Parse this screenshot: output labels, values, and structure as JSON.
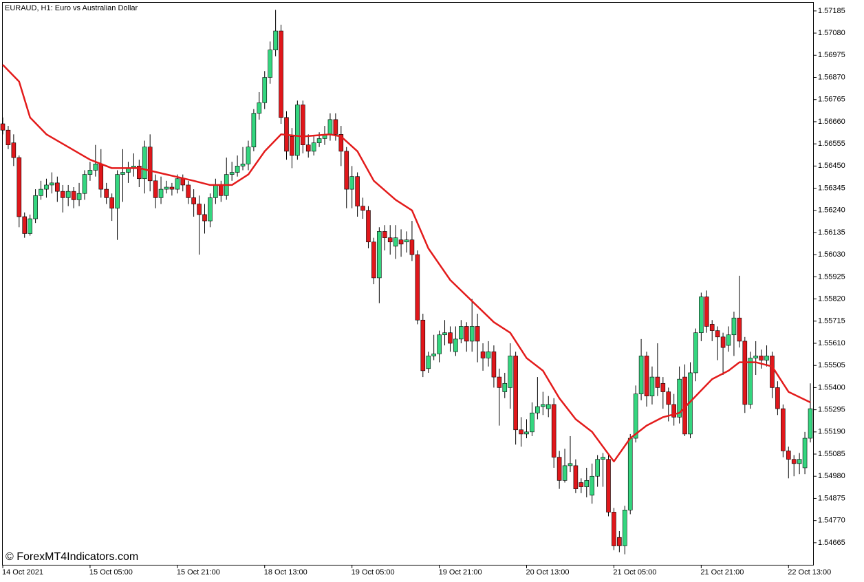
{
  "chart_data": {
    "type": "candlestick",
    "title": "EURAUD, H1:  Euro vs Australian Dollar",
    "watermark": "© ForexMT4Indicators.com",
    "up_color": "#34d67f",
    "down_color": "#e0171b",
    "categories": [
      "14 Oct 2021",
      null,
      null,
      null,
      null,
      null,
      null,
      null,
      null,
      null,
      null,
      null,
      null,
      null,
      null,
      null,
      "15 Oct 05:00",
      null,
      null,
      null,
      null,
      null,
      null,
      null,
      null,
      null,
      null,
      null,
      null,
      null,
      null,
      null,
      "15 Oct 21:00",
      null,
      null,
      null,
      null,
      null,
      null,
      null,
      null,
      null,
      null,
      null,
      null,
      null,
      null,
      null,
      "18 Oct 13:00",
      null,
      null,
      null,
      null,
      null,
      null,
      null,
      null,
      null,
      null,
      null,
      null,
      null,
      null,
      null,
      "19 Oct 05:00",
      null,
      null,
      null,
      null,
      null,
      null,
      null,
      null,
      null,
      null,
      null,
      null,
      null,
      null,
      null,
      "19 Oct 21:00",
      null,
      null,
      null,
      null,
      null,
      null,
      null,
      null,
      null,
      null,
      null,
      null,
      null,
      null,
      null,
      "20 Oct 13:00",
      null,
      null,
      null,
      null,
      null,
      null,
      null,
      null,
      null,
      null,
      null,
      null,
      null,
      null,
      null,
      "21 Oct 05:00",
      null,
      null,
      null,
      null,
      null,
      null,
      null,
      null,
      null,
      null,
      null,
      null,
      null,
      null,
      null,
      "21 Oct 21:00",
      null,
      null,
      null,
      null,
      null,
      null,
      null,
      null,
      null,
      null,
      null,
      null,
      null,
      null,
      null,
      "22 Oct 13:00",
      null,
      null,
      null,
      null
    ],
    "open": [
      1.5665,
      1.5662,
      1.5656,
      1.5649,
      1.5621,
      1.5613,
      1.562,
      1.5631,
      1.5634,
      1.5636,
      1.5637,
      1.5633,
      1.563,
      1.5633,
      1.5629,
      1.5632,
      1.5641,
      1.5643,
      1.5646,
      1.5634,
      1.563,
      1.5625,
      1.5641,
      1.5642,
      1.5644,
      1.5645,
      1.5639,
      1.5654,
      1.5638,
      1.563,
      1.5634,
      1.5635,
      1.5634,
      1.5639,
      1.5636,
      1.563,
      1.5627,
      1.5622,
      1.5619,
      1.563,
      1.5636,
      1.5631,
      1.5641,
      1.5642,
      1.5645,
      1.5646,
      1.5654,
      1.567,
      1.5675,
      1.5687,
      1.57,
      1.5709,
      1.5668,
      1.5659,
      1.565,
      1.5674,
      1.5655,
      1.5652,
      1.5656,
      1.5658,
      1.566,
      1.5667,
      1.566,
      1.5652,
      1.5634,
      1.564,
      1.5626,
      1.5624,
      1.5609,
      1.5592,
      1.5614,
      1.5611,
      1.5607,
      1.561,
      1.5609,
      1.561,
      1.5603,
      1.5572,
      1.5549,
      1.5555,
      1.5556,
      1.5565,
      1.5566,
      1.5557,
      1.5563,
      1.5569,
      1.5562,
      1.5569,
      1.5557,
      1.5554,
      1.5557,
      1.5545,
      1.5538,
      1.554,
      1.5555,
      1.552,
      1.5518,
      1.5519,
      1.5528,
      1.5531,
      1.553,
      1.5532,
      1.5507,
      1.5496,
      1.5503,
      1.5503,
      1.5495,
      1.5493,
      1.5489,
      1.5498,
      1.5506,
      1.5506,
      1.5481,
      1.5469,
      1.5465,
      1.5482,
      1.5516,
      1.5537,
      1.5555,
      1.5536,
      1.5545,
      1.5542,
      1.5538,
      1.5532,
      1.5526,
      1.5545,
      1.5518,
      1.5547,
      1.5566,
      1.5583,
      1.557,
      1.5567,
      1.5564,
      1.556,
      1.5565,
      1.5573,
      1.5562,
      1.5532,
      1.5554,
      1.5555,
      1.5553,
      1.5555,
      1.554,
      1.553,
      1.551,
      1.5506,
      1.5504,
      1.5502,
      1.5516
    ],
    "high": [
      1.5668,
      1.5664,
      1.566,
      1.565,
      1.5623,
      1.5622,
      1.5634,
      1.5638,
      1.5639,
      1.5642,
      1.564,
      1.5636,
      1.5636,
      1.5635,
      1.5637,
      1.5643,
      1.5647,
      1.5655,
      1.5653,
      1.5637,
      1.5632,
      1.5643,
      1.5653,
      1.5647,
      1.5651,
      1.5648,
      1.5657,
      1.566,
      1.5641,
      1.564,
      1.5638,
      1.5637,
      1.5641,
      1.5641,
      1.5638,
      1.5634,
      1.5631,
      1.5627,
      1.5632,
      1.5639,
      1.5638,
      1.5649,
      1.5647,
      1.565,
      1.5654,
      1.5657,
      1.5672,
      1.568,
      1.569,
      1.5704,
      1.5719,
      1.5712,
      1.5671,
      1.5663,
      1.5676,
      1.5676,
      1.566,
      1.5659,
      1.5661,
      1.5664,
      1.567,
      1.567,
      1.5664,
      1.5654,
      1.5645,
      1.5642,
      1.563,
      1.5626,
      1.5611,
      1.5616,
      1.5617,
      1.5617,
      1.5617,
      1.5615,
      1.5614,
      1.5619,
      1.5605,
      1.5575,
      1.5557,
      1.5565,
      1.5567,
      1.5572,
      1.5569,
      1.5569,
      1.5572,
      1.5571,
      1.5582,
      1.5575,
      1.5561,
      1.5562,
      1.556,
      1.5549,
      1.5547,
      1.5561,
      1.5557,
      1.5526,
      1.5525,
      1.5533,
      1.5545,
      1.5538,
      1.5536,
      1.5535,
      1.551,
      1.5511,
      1.5517,
      1.5506,
      1.5497,
      1.5502,
      1.5504,
      1.5508,
      1.5509,
      1.5508,
      1.5483,
      1.5472,
      1.5484,
      1.5518,
      1.5541,
      1.5563,
      1.5557,
      1.555,
      1.5561,
      1.5545,
      1.554,
      1.5537,
      1.555,
      1.5551,
      1.5552,
      1.5568,
      1.5585,
      1.5586,
      1.5572,
      1.5569,
      1.5566,
      1.5569,
      1.5576,
      1.5593,
      1.5564,
      1.5557,
      1.5562,
      1.5558,
      1.556,
      1.5557,
      1.5543,
      1.5532,
      1.5512,
      1.5508,
      1.5509,
      1.5519,
      1.5542
    ],
    "low": [
      1.566,
      1.5653,
      1.5645,
      1.5616,
      1.5611,
      1.5612,
      1.5618,
      1.5629,
      1.563,
      1.5632,
      1.5628,
      1.5623,
      1.5626,
      1.5625,
      1.5626,
      1.5629,
      1.5638,
      1.564,
      1.563,
      1.5627,
      1.5619,
      1.561,
      1.5628,
      1.5637,
      1.564,
      1.5635,
      1.5632,
      1.5633,
      1.5625,
      1.5627,
      1.5632,
      1.5631,
      1.5632,
      1.5633,
      1.5627,
      1.5621,
      1.5603,
      1.5613,
      1.5616,
      1.5627,
      1.5628,
      1.5629,
      1.5638,
      1.564,
      1.5643,
      1.5643,
      1.5652,
      1.5667,
      1.5672,
      1.5684,
      1.5697,
      1.5665,
      1.5648,
      1.5644,
      1.5648,
      1.5651,
      1.5649,
      1.565,
      1.5654,
      1.5655,
      1.5657,
      1.5657,
      1.5645,
      1.5625,
      1.5625,
      1.5621,
      1.562,
      1.5606,
      1.5589,
      1.558,
      1.5605,
      1.5603,
      1.5601,
      1.5602,
      1.5604,
      1.56,
      1.557,
      1.5545,
      1.5547,
      1.5553,
      1.5552,
      1.556,
      1.5557,
      1.5555,
      1.5561,
      1.5557,
      1.5557,
      1.5552,
      1.5548,
      1.555,
      1.554,
      1.5522,
      1.5535,
      1.553,
      1.5513,
      1.5512,
      1.5516,
      1.5517,
      1.5525,
      1.5527,
      1.5526,
      1.5502,
      1.5492,
      1.5495,
      1.55,
      1.549,
      1.549,
      1.5488,
      1.5485,
      1.5493,
      1.5493,
      1.5479,
      1.5463,
      1.5462,
      1.5461,
      1.548,
      1.5514,
      1.5534,
      1.5531,
      1.5532,
      1.5536,
      1.553,
      1.5524,
      1.5522,
      1.5523,
      1.5517,
      1.5516,
      1.5543,
      1.5562,
      1.5566,
      1.5562,
      1.5553,
      1.5546,
      1.5557,
      1.5555,
      1.5559,
      1.5528,
      1.553,
      1.5546,
      1.5549,
      1.555,
      1.5535,
      1.5527,
      1.5507,
      1.5497,
      1.5498,
      1.5499,
      1.5499,
      1.5514
    ],
    "close": [
      1.5662,
      1.5655,
      1.5649,
      1.5621,
      1.5613,
      1.562,
      1.5631,
      1.5634,
      1.5636,
      1.5637,
      1.5633,
      1.563,
      1.5633,
      1.5629,
      1.5632,
      1.5641,
      1.5643,
      1.5646,
      1.5634,
      1.563,
      1.5625,
      1.5641,
      1.5642,
      1.5644,
      1.5645,
      1.5639,
      1.5654,
      1.5638,
      1.563,
      1.5634,
      1.5635,
      1.5634,
      1.5639,
      1.5636,
      1.563,
      1.5627,
      1.5622,
      1.5619,
      1.563,
      1.5636,
      1.5631,
      1.5641,
      1.5642,
      1.5645,
      1.5646,
      1.5654,
      1.567,
      1.5675,
      1.5687,
      1.57,
      1.5709,
      1.5668,
      1.5652,
      1.565,
      1.5674,
      1.5655,
      1.5652,
      1.5656,
      1.5658,
      1.566,
      1.5667,
      1.566,
      1.5652,
      1.5634,
      1.564,
      1.5626,
      1.5624,
      1.5609,
      1.5592,
      1.5614,
      1.5611,
      1.5609,
      1.5611,
      1.5608,
      1.561,
      1.5603,
      1.5572,
      1.5548,
      1.5555,
      1.5556,
      1.5565,
      1.5566,
      1.5561,
      1.5563,
      1.5569,
      1.5562,
      1.5569,
      1.5562,
      1.5554,
      1.5557,
      1.5545,
      1.554,
      1.5542,
      1.5555,
      1.552,
      1.5518,
      1.5519,
      1.5528,
      1.5531,
      1.5532,
      1.5532,
      1.5507,
      1.5496,
      1.5503,
      1.5504,
      1.5492,
      1.5493,
      1.5496,
      1.5498,
      1.5506,
      1.5507,
      1.5481,
      1.5465,
      1.5465,
      1.5482,
      1.5516,
      1.5537,
      1.5555,
      1.5536,
      1.5545,
      1.554,
      1.5538,
      1.5532,
      1.5526,
      1.5544,
      1.5518,
      1.5547,
      1.5566,
      1.5583,
      1.5569,
      1.5567,
      1.5564,
      1.5559,
      1.5565,
      1.5573,
      1.5562,
      1.5532,
      1.5554,
      1.5555,
      1.5553,
      1.5555,
      1.554,
      1.553,
      1.551,
      1.5506,
      1.5504,
      1.5506,
      1.5516,
      1.553
    ],
    "ma": {
      "color": "#e31b1b",
      "x": [
        0,
        3,
        5,
        8,
        12,
        16,
        20,
        25,
        30,
        35,
        38,
        42,
        45,
        48,
        51,
        55,
        60,
        62,
        65,
        68,
        72,
        75,
        78,
        82,
        86,
        90,
        93,
        96,
        99,
        102,
        105,
        108,
        112,
        115,
        118,
        121,
        124,
        127,
        130,
        133,
        135,
        138,
        141,
        144,
        148
      ],
      "values": [
        1.5693,
        1.5685,
        1.5668,
        1.566,
        1.5654,
        1.5648,
        1.5644,
        1.5644,
        1.5641,
        1.5638,
        1.5636,
        1.5636,
        1.5641,
        1.5652,
        1.566,
        1.5659,
        1.566,
        1.5659,
        1.5652,
        1.5638,
        1.5629,
        1.5624,
        1.5606,
        1.5591,
        1.5581,
        1.5571,
        1.5566,
        1.5554,
        1.5548,
        1.5535,
        1.5525,
        1.5519,
        1.5505,
        1.5516,
        1.5522,
        1.5526,
        1.5528,
        1.5536,
        1.5544,
        1.5548,
        1.5552,
        1.5552,
        1.555,
        1.5538,
        1.5533
      ]
    },
    "ylim": [
      1.54557,
      1.57227
    ],
    "yticks": [
      1.57185,
      {
        "value": 1.5708,
        "label": "1.57080"
      },
      1.56975,
      {
        "value": 1.5687,
        "label": "1.56870"
      },
      1.56765,
      {
        "value": 1.5666,
        "label": "1.56660"
      },
      1.56555,
      {
        "value": 1.5645,
        "label": "1.56450"
      },
      1.56345,
      {
        "value": 1.5624,
        "label": "1.56240"
      },
      1.56135,
      {
        "value": 1.5603,
        "label": "1.56030"
      },
      1.55925,
      {
        "value": 1.5582,
        "label": "1.55820"
      },
      1.55715,
      {
        "value": 1.5561,
        "label": "1.55610"
      },
      1.55505,
      {
        "value": 1.554,
        "label": "1.55400"
      },
      1.55295,
      {
        "value": 1.5519,
        "label": "1.55190"
      },
      1.55085,
      {
        "value": 1.5498,
        "label": "1.54980"
      },
      1.54875,
      {
        "value": 1.5477,
        "label": "1.54770"
      },
      1.54665
    ]
  }
}
